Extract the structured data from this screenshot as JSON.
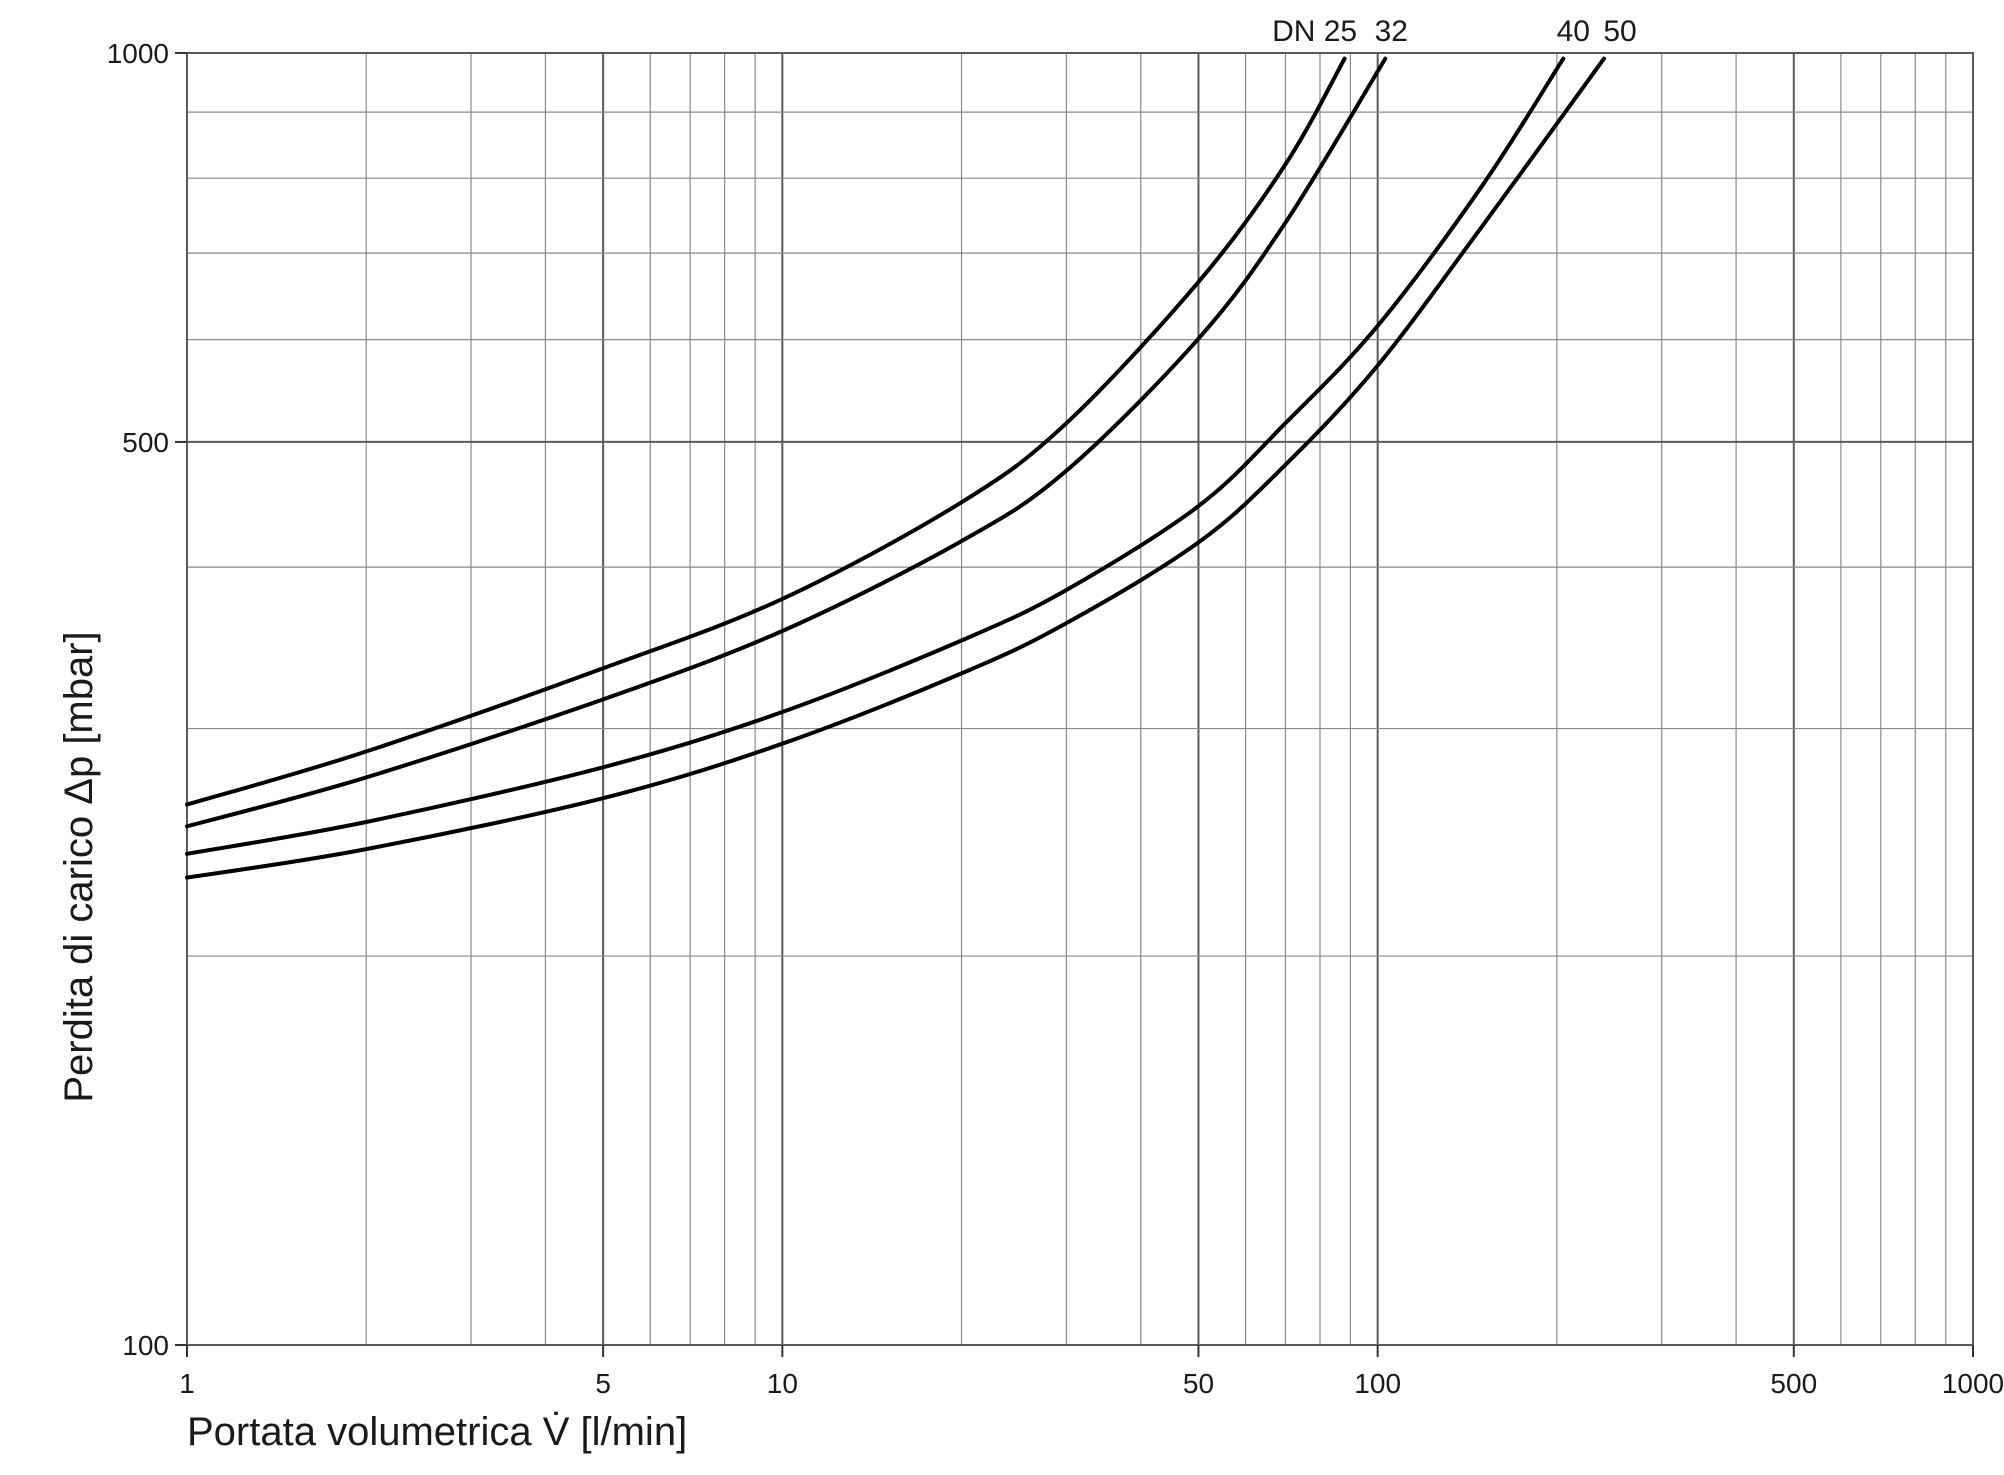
{
  "chart_data": {
    "type": "line",
    "xlabel": "Portata volumetrica V̇ [l/min]",
    "ylabel": "Perdita di carico Δp [mbar]",
    "xscale": "log",
    "yscale": "log",
    "xlim": [
      1,
      1000
    ],
    "ylim": [
      100,
      1000
    ],
    "x_ticks": [
      {
        "value": 1,
        "label": "1"
      },
      {
        "value": 5,
        "label": "5"
      },
      {
        "value": 10,
        "label": "10"
      },
      {
        "value": 50,
        "label": "50"
      },
      {
        "value": 100,
        "label": "100"
      },
      {
        "value": 500,
        "label": "500"
      },
      {
        "value": 1000,
        "label": "1000"
      }
    ],
    "y_ticks": [
      {
        "value": 100,
        "label": "100"
      },
      {
        "value": 500,
        "label": "500"
      },
      {
        "value": 1000,
        "label": "1000"
      }
    ],
    "grid": true,
    "legend": "curve labels at top of each line",
    "series": [
      {
        "name": "DN 25",
        "x": [
          1,
          2,
          5,
          10,
          20,
          30,
          50,
          70,
          88
        ],
        "y": [
          262,
          288,
          334,
          378,
          449,
          517,
          665,
          820,
          990
        ]
      },
      {
        "name": "32",
        "x": [
          1,
          2,
          5,
          10,
          20,
          30,
          50,
          70,
          103
        ],
        "y": [
          252,
          275,
          316,
          357,
          419,
          475,
          601,
          739,
          990
        ]
      },
      {
        "name": "40",
        "x": [
          1,
          2,
          5,
          10,
          20,
          30,
          50,
          70,
          100,
          150,
          205
        ],
        "y": [
          240,
          254,
          280,
          309,
          351,
          384,
          446,
          517,
          615,
          790,
          990
        ]
      },
      {
        "name": "50",
        "x": [
          1,
          2,
          5,
          10,
          20,
          30,
          50,
          70,
          100,
          150,
          240
        ],
        "y": [
          230,
          242,
          265,
          292,
          331,
          362,
          418,
          480,
          573,
          735,
          990
        ]
      }
    ]
  }
}
